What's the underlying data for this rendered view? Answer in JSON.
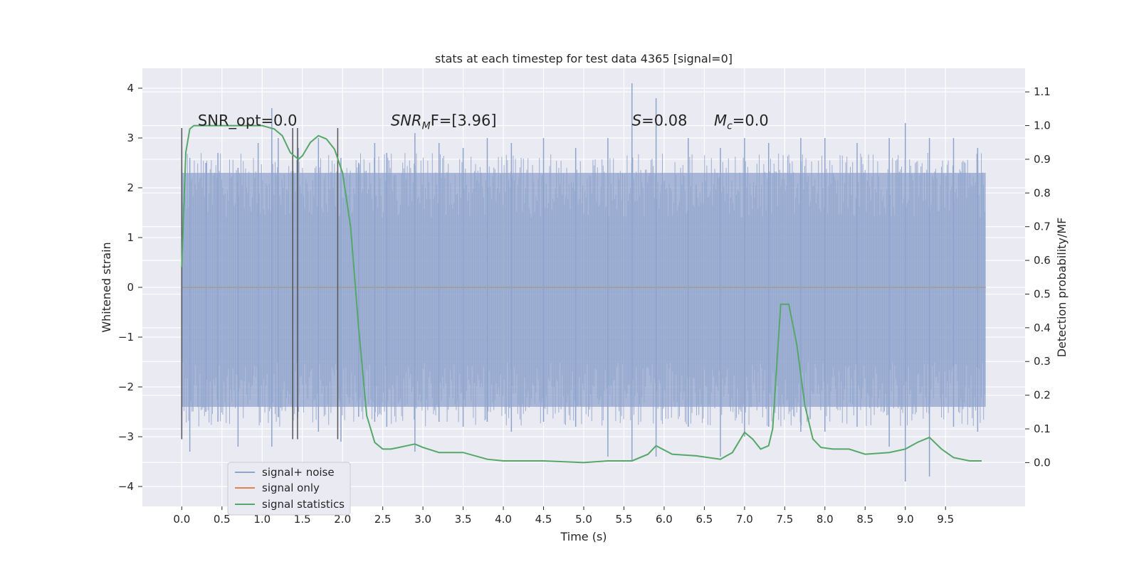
{
  "chart_data": {
    "type": "line",
    "title": "stats at each timestep for test data 4365 [signal=0]",
    "xlabel": "Time (s)",
    "ylabel": "Whitened strain",
    "y2label": "Detection probability/MF",
    "xlim": [
      -0.49,
      10.49
    ],
    "ylim": [
      -4.4,
      4.4
    ],
    "y2lim": [
      -0.13,
      1.17
    ],
    "x_ticks": [
      0.0,
      0.5,
      1.0,
      1.5,
      2.0,
      2.5,
      3.0,
      3.5,
      4.0,
      4.5,
      5.0,
      5.5,
      6.0,
      6.5,
      7.0,
      7.5,
      8.0,
      8.5,
      9.0,
      9.5
    ],
    "x_tick_labels": [
      "0.0",
      "0.5",
      "1.0",
      "1.5",
      "2.0",
      "2.5",
      "3.0",
      "3.5",
      "4.0",
      "4.5",
      "5.0",
      "5.5",
      "6.0",
      "6.5",
      "7.0",
      "7.5",
      "8.0",
      "8.5",
      "9.0",
      "9.5"
    ],
    "y_ticks": [
      4,
      3,
      2,
      1,
      0,
      -1,
      -2,
      -3,
      -4
    ],
    "y_tick_labels": [
      "4",
      "3",
      "2",
      "1",
      "0",
      "−1",
      "−2",
      "−3",
      "−4"
    ],
    "y2_ticks": [
      1.1,
      1.0,
      0.9,
      0.8,
      0.7,
      0.6,
      0.5,
      0.4,
      0.3,
      0.2,
      0.1,
      0.0
    ],
    "y2_tick_labels": [
      "1.1",
      "1.0",
      "0.9",
      "0.8",
      "0.7",
      "0.6",
      "0.5",
      "0.4",
      "0.3",
      "0.2",
      "0.1",
      "0.0"
    ],
    "grid": true,
    "legend_position": "lower-left",
    "colors": {
      "plot_bg": "#EAEAF2",
      "grid": "#ffffff",
      "noise": "#8fa4cc",
      "signal_only": "#dd8452",
      "stats": "#55a868",
      "vline": "#555555"
    },
    "series": [
      {
        "name": "signal+ noise",
        "axis": "left",
        "noise_band": {
          "x_start": 0.0,
          "x_end": 10.0,
          "y_min": -2.4,
          "y_max": 2.3
        },
        "peaks_x": [
          0.0,
          0.1,
          0.3,
          0.45,
          0.7,
          0.95,
          1.12,
          1.2,
          1.45,
          1.7,
          1.98,
          2.2,
          2.4,
          2.55,
          2.9,
          3.2,
          3.5,
          3.8,
          4.1,
          4.5,
          4.9,
          5.3,
          5.6,
          5.9,
          6.3,
          6.7,
          7.0,
          7.3,
          7.7,
          8.0,
          8.4,
          8.8,
          9.0,
          9.3,
          9.6,
          9.9
        ],
        "peaks_hi": [
          2.4,
          2.6,
          2.5,
          2.7,
          2.4,
          2.9,
          3.6,
          3.0,
          2.8,
          3.0,
          2.6,
          2.5,
          2.9,
          2.7,
          3.1,
          2.9,
          2.8,
          3.0,
          2.9,
          3.0,
          2.8,
          3.0,
          4.1,
          3.8,
          3.0,
          2.8,
          3.0,
          2.9,
          3.0,
          3.0,
          2.9,
          3.0,
          3.3,
          3.0,
          3.0,
          2.8
        ],
        "peaks_lo": [
          -2.6,
          -3.3,
          -2.5,
          -2.7,
          -3.2,
          -2.4,
          -3.2,
          -2.6,
          -2.5,
          -2.9,
          -3.1,
          -2.6,
          -2.7,
          -2.8,
          -3.3,
          -2.7,
          -2.8,
          -2.7,
          -2.9,
          -2.7,
          -2.8,
          -3.4,
          -3.5,
          -3.4,
          -2.8,
          -3.4,
          -3.0,
          -2.8,
          -2.9,
          -2.9,
          -2.8,
          -3.2,
          -3.9,
          -3.8,
          -2.8,
          -2.9
        ]
      },
      {
        "name": "signal only",
        "axis": "left",
        "x": [
          0.0,
          10.0
        ],
        "y": [
          0.0,
          0.0
        ]
      },
      {
        "name": "signal statistics",
        "axis": "right",
        "x": [
          0.0,
          0.05,
          0.1,
          0.15,
          0.25,
          0.5,
          0.75,
          1.0,
          1.15,
          1.25,
          1.35,
          1.45,
          1.5,
          1.6,
          1.7,
          1.8,
          1.9,
          2.0,
          2.1,
          2.2,
          2.3,
          2.4,
          2.5,
          2.6,
          2.7,
          2.8,
          2.9,
          3.0,
          3.2,
          3.5,
          3.8,
          4.0,
          4.5,
          5.0,
          5.3,
          5.6,
          5.8,
          5.9,
          6.1,
          6.4,
          6.7,
          6.85,
          7.0,
          7.1,
          7.2,
          7.3,
          7.35,
          7.45,
          7.55,
          7.65,
          7.75,
          7.85,
          7.95,
          8.1,
          8.3,
          8.5,
          8.8,
          9.0,
          9.15,
          9.3,
          9.45,
          9.6,
          9.8,
          9.95
        ],
        "y": [
          0.58,
          0.92,
          0.99,
          1.0,
          1.0,
          1.0,
          1.0,
          1.0,
          0.99,
          0.97,
          0.92,
          0.9,
          0.91,
          0.95,
          0.97,
          0.96,
          0.93,
          0.86,
          0.7,
          0.4,
          0.14,
          0.06,
          0.04,
          0.04,
          0.045,
          0.05,
          0.055,
          0.045,
          0.03,
          0.03,
          0.01,
          0.005,
          0.005,
          0.0,
          0.005,
          0.005,
          0.025,
          0.05,
          0.025,
          0.02,
          0.01,
          0.03,
          0.09,
          0.07,
          0.04,
          0.05,
          0.1,
          0.47,
          0.47,
          0.35,
          0.17,
          0.07,
          0.045,
          0.04,
          0.04,
          0.025,
          0.03,
          0.04,
          0.06,
          0.075,
          0.04,
          0.015,
          0.005,
          0.005
        ]
      }
    ],
    "vlines_x": [
      0.0,
      1.38,
      1.44,
      1.94
    ],
    "vline_range_left": [
      -3.05,
      3.2
    ],
    "annotations": [
      {
        "x": 0.2,
        "y": 1.0,
        "axis": "right",
        "text": "SNR_opt=0.0",
        "italic": false
      },
      {
        "x": 2.6,
        "y": 1.0,
        "axis": "right",
        "text": "SNR",
        "sub": "M",
        "tail": "F=[3.96]",
        "italic_base": true
      },
      {
        "x": 5.6,
        "y": 1.0,
        "axis": "right",
        "text": "S",
        "tail": "=0.08",
        "italic_base": true
      },
      {
        "x": 6.62,
        "y": 1.0,
        "axis": "right",
        "text": "M",
        "sub": "c",
        "tail": "=0.0",
        "italic_base": true
      }
    ]
  }
}
